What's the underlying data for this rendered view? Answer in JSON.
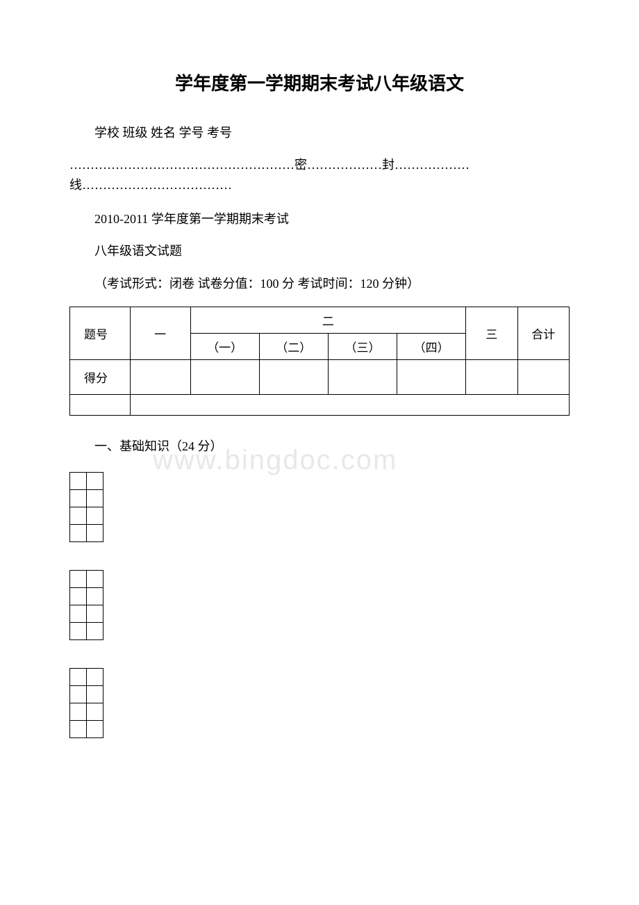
{
  "title": "学年度第一学期期末考试八年级语文",
  "header_fields": "学校  班级  姓名  学号 考号",
  "seal_line": "………………………………………………密………………封………………线………………………………",
  "exam_year": "2010-2011 学年度第一学期期末考试",
  "exam_subject": "八年级语文试题",
  "exam_info": "（考试形式：闭卷 试卷分值：100 分 考试时间：120 分钟）",
  "table": {
    "row1_label": "题号",
    "col_one": "一",
    "col_two": "二",
    "sub1": "（一）",
    "sub2": "（二）",
    "sub3": "（三）",
    "sub4": "（四）",
    "col_three": "三",
    "col_total": "合计",
    "row2_label": "得分"
  },
  "section1": "一、基础知识（24 分）",
  "watermark_text": "www.bingdoc.com",
  "colors": {
    "text": "#000000",
    "background": "#ffffff",
    "border": "#000000",
    "watermark": "#e8e8e8"
  },
  "small_grid": {
    "rows": 4,
    "cols": 2
  }
}
